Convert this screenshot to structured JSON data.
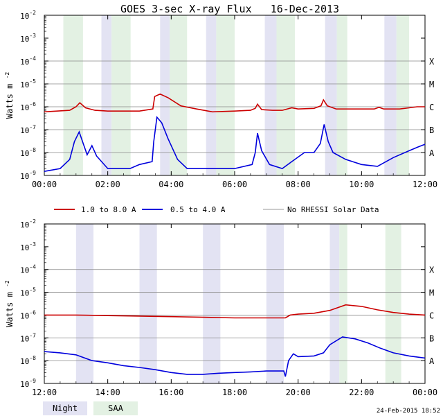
{
  "chart_data": {
    "type": "line",
    "title": "GOES 3-sec X-ray Flux   16-Dec-2013",
    "ylabel": "Watts m",
    "ylabel_sup": "-2",
    "ylim": [
      1e-09,
      0.01
    ],
    "log_scale": true,
    "grid": true,
    "y_ticks": [
      {
        "base": "10",
        "exp": "-9",
        "value": 1e-09
      },
      {
        "base": "10",
        "exp": "-8",
        "value": 1e-08
      },
      {
        "base": "10",
        "exp": "-7",
        "value": 1e-07
      },
      {
        "base": "10",
        "exp": "-6",
        "value": 1e-06
      },
      {
        "base": "10",
        "exp": "-5",
        "value": 1e-05
      },
      {
        "base": "10",
        "exp": "-4",
        "value": 0.0001
      },
      {
        "base": "10",
        "exp": "-3",
        "value": 0.001
      },
      {
        "base": "10",
        "exp": "-2",
        "value": 0.01
      }
    ],
    "flare_classes": [
      {
        "label": "A",
        "value": 1e-08
      },
      {
        "label": "B",
        "value": 1e-07
      },
      {
        "label": "C",
        "value": 1e-06
      },
      {
        "label": "M",
        "value": 1e-05
      },
      {
        "label": "X",
        "value": 0.0001
      }
    ],
    "legend": [
      {
        "name": "1.0 to 8.0 A",
        "color": "#cc0000"
      },
      {
        "name": "0.5 to 4.0 A",
        "color": "#0000dd"
      },
      {
        "name": "No RHESSI Solar Data",
        "color": "#999999"
      }
    ],
    "shade_legend": [
      {
        "name": "Night",
        "color": "#e3e3f3"
      },
      {
        "name": "SAA",
        "color": "#e3f1e3"
      }
    ],
    "timestamp": "24-Feb-2015 18:52",
    "panels": [
      {
        "xlim": [
          0,
          12
        ],
        "x_ticks": [
          {
            "label": "00:00",
            "h": 0
          },
          {
            "label": "02:00",
            "h": 2
          },
          {
            "label": "04:00",
            "h": 4
          },
          {
            "label": "06:00",
            "h": 6
          },
          {
            "label": "08:00",
            "h": 8
          },
          {
            "label": "10:00",
            "h": 10
          },
          {
            "label": "12:00",
            "h": 12
          }
        ],
        "night_bands": [
          [
            1.8,
            2.12
          ],
          [
            3.65,
            3.95
          ],
          [
            5.1,
            5.42
          ],
          [
            6.95,
            7.32
          ],
          [
            8.85,
            9.22
          ],
          [
            10.72,
            11.1
          ]
        ],
        "saa_bands": [
          [
            0.6,
            1.22
          ],
          [
            2.12,
            2.72
          ],
          [
            3.95,
            4.5
          ],
          [
            5.42,
            6.0
          ],
          [
            7.32,
            7.9
          ],
          [
            9.22,
            9.55
          ],
          [
            11.1,
            11.5
          ]
        ],
        "long_series": [
          [
            0,
            6e-07
          ],
          [
            0.8,
            7e-07
          ],
          [
            1.0,
            1e-06
          ],
          [
            1.12,
            1.5e-06
          ],
          [
            1.3,
            9e-07
          ],
          [
            1.6,
            7e-07
          ],
          [
            2.0,
            6.5e-07
          ],
          [
            3.0,
            6.5e-07
          ],
          [
            3.42,
            8e-07
          ],
          [
            3.48,
            2.8e-06
          ],
          [
            3.65,
            3.6e-06
          ],
          [
            3.9,
            2.5e-06
          ],
          [
            4.3,
            1.1e-06
          ],
          [
            4.8,
            8e-07
          ],
          [
            5.3,
            6e-07
          ],
          [
            6.0,
            6.5e-07
          ],
          [
            6.5,
            7e-07
          ],
          [
            6.65,
            8.5e-07
          ],
          [
            6.72,
            1.3e-06
          ],
          [
            6.85,
            7.5e-07
          ],
          [
            7.2,
            7e-07
          ],
          [
            7.5,
            7e-07
          ],
          [
            7.8,
            9e-07
          ],
          [
            8.0,
            8e-07
          ],
          [
            8.5,
            8.5e-07
          ],
          [
            8.72,
            1.1e-06
          ],
          [
            8.8,
            2e-06
          ],
          [
            8.92,
            1.1e-06
          ],
          [
            9.2,
            8e-07
          ],
          [
            10.0,
            8e-07
          ],
          [
            10.4,
            8e-07
          ],
          [
            10.55,
            9.5e-07
          ],
          [
            10.7,
            8e-07
          ],
          [
            11.2,
            8e-07
          ],
          [
            11.5,
            9e-07
          ],
          [
            11.75,
            1e-06
          ],
          [
            12,
            1e-06
          ]
        ],
        "short_series": [
          [
            0,
            1.5e-09
          ],
          [
            0.5,
            2e-09
          ],
          [
            0.8,
            5e-09
          ],
          [
            0.95,
            3e-08
          ],
          [
            1.1,
            8e-08
          ],
          [
            1.25,
            2e-08
          ],
          [
            1.35,
            8e-09
          ],
          [
            1.5,
            2e-08
          ],
          [
            1.65,
            7e-09
          ],
          [
            2.0,
            2e-09
          ],
          [
            2.7,
            2e-09
          ],
          [
            3.0,
            3e-09
          ],
          [
            3.4,
            4e-09
          ],
          [
            3.45,
            3e-08
          ],
          [
            3.55,
            3.5e-07
          ],
          [
            3.7,
            2e-07
          ],
          [
            3.9,
            4e-08
          ],
          [
            4.2,
            5e-09
          ],
          [
            4.5,
            2e-09
          ],
          [
            5.0,
            2e-09
          ],
          [
            6.0,
            2e-09
          ],
          [
            6.55,
            3e-09
          ],
          [
            6.65,
            1e-08
          ],
          [
            6.72,
            7e-08
          ],
          [
            6.85,
            1.2e-08
          ],
          [
            7.1,
            3e-09
          ],
          [
            7.5,
            2e-09
          ],
          [
            7.8,
            4e-09
          ],
          [
            8.2,
            1e-08
          ],
          [
            8.5,
            1e-08
          ],
          [
            8.7,
            2.5e-08
          ],
          [
            8.82,
            1.7e-07
          ],
          [
            8.95,
            3e-08
          ],
          [
            9.1,
            1e-08
          ],
          [
            9.5,
            5e-09
          ],
          [
            10.0,
            3e-09
          ],
          [
            10.5,
            2.5e-09
          ],
          [
            11.0,
            6e-09
          ],
          [
            11.5,
            1.2e-08
          ],
          [
            11.8,
            1.8e-08
          ],
          [
            12,
            2.3e-08
          ]
        ]
      },
      {
        "xlim": [
          12,
          24
        ],
        "x_ticks": [
          {
            "label": "12:00",
            "h": 12
          },
          {
            "label": "14:00",
            "h": 14
          },
          {
            "label": "16:00",
            "h": 16
          },
          {
            "label": "18:00",
            "h": 18
          },
          {
            "label": "20:00",
            "h": 20
          },
          {
            "label": "22:00",
            "h": 22
          },
          {
            "label": "00:00",
            "h": 24
          }
        ],
        "night_bands": [
          [
            13.0,
            13.55
          ],
          [
            15.0,
            15.55
          ],
          [
            17.0,
            17.55
          ],
          [
            19.0,
            19.55
          ],
          [
            21.0,
            21.3
          ]
        ],
        "saa_bands": [
          [
            21.3,
            21.55
          ],
          [
            22.75,
            23.25
          ]
        ],
        "long_series": [
          [
            12,
            1e-06
          ],
          [
            13.0,
            1e-06
          ],
          [
            14.0,
            9.5e-07
          ],
          [
            15.0,
            9e-07
          ],
          [
            16.0,
            8.5e-07
          ],
          [
            17.0,
            8e-07
          ],
          [
            18.0,
            7.5e-07
          ],
          [
            19.0,
            7.5e-07
          ],
          [
            19.6,
            7.5e-07
          ],
          [
            19.75,
            1e-06
          ],
          [
            20.0,
            1.1e-06
          ],
          [
            20.5,
            1.2e-06
          ],
          [
            21.0,
            1.6e-06
          ],
          [
            21.5,
            2.8e-06
          ],
          [
            22.0,
            2.4e-06
          ],
          [
            22.5,
            1.7e-06
          ],
          [
            23.0,
            1.3e-06
          ],
          [
            23.5,
            1.1e-06
          ],
          [
            24,
            1e-06
          ]
        ],
        "short_series": [
          [
            12,
            2.5e-08
          ],
          [
            12.5,
            2.2e-08
          ],
          [
            13.0,
            1.8e-08
          ],
          [
            13.5,
            1e-08
          ],
          [
            14.0,
            8e-09
          ],
          [
            14.5,
            6e-09
          ],
          [
            15.0,
            5e-09
          ],
          [
            15.5,
            4e-09
          ],
          [
            16.0,
            3e-09
          ],
          [
            16.5,
            2.5e-09
          ],
          [
            17.0,
            2.5e-09
          ],
          [
            17.5,
            2.8e-09
          ],
          [
            18.0,
            3e-09
          ],
          [
            18.5,
            3.2e-09
          ],
          [
            19.0,
            3.5e-09
          ],
          [
            19.55,
            3.5e-09
          ],
          [
            19.6,
            2e-09
          ],
          [
            19.7,
            1e-08
          ],
          [
            19.85,
            2e-08
          ],
          [
            20.0,
            1.5e-08
          ],
          [
            20.5,
            1.6e-08
          ],
          [
            20.8,
            2.2e-08
          ],
          [
            21.0,
            5e-08
          ],
          [
            21.4,
            1.1e-07
          ],
          [
            21.8,
            9e-08
          ],
          [
            22.2,
            6e-08
          ],
          [
            22.6,
            3.5e-08
          ],
          [
            23.0,
            2.2e-08
          ],
          [
            23.5,
            1.6e-08
          ],
          [
            24,
            1.3e-08
          ]
        ]
      }
    ]
  }
}
